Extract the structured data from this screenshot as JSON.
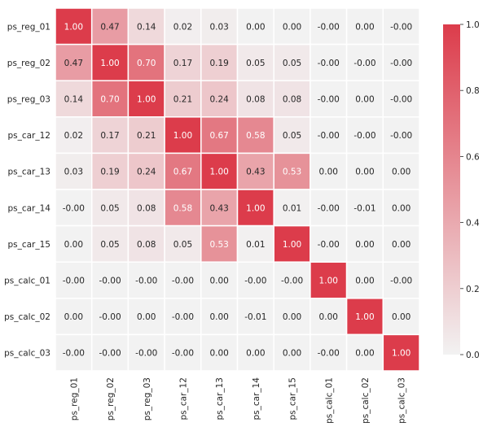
{
  "chart_data": {
    "type": "heatmap",
    "title": "",
    "xlabel": "",
    "ylabel": "",
    "variables": [
      "ps_reg_01",
      "ps_reg_02",
      "ps_reg_03",
      "ps_car_12",
      "ps_car_13",
      "ps_car_14",
      "ps_car_15",
      "ps_calc_01",
      "ps_calc_02",
      "ps_calc_03"
    ],
    "matrix": [
      [
        "1.00",
        "0.47",
        "0.14",
        "0.02",
        "0.03",
        "0.00",
        "0.00",
        "-0.00",
        "0.00",
        "-0.00"
      ],
      [
        "0.47",
        "1.00",
        "0.70",
        "0.17",
        "0.19",
        "0.05",
        "0.05",
        "-0.00",
        "-0.00",
        "-0.00"
      ],
      [
        "0.14",
        "0.70",
        "1.00",
        "0.21",
        "0.24",
        "0.08",
        "0.08",
        "-0.00",
        "0.00",
        "-0.00"
      ],
      [
        "0.02",
        "0.17",
        "0.21",
        "1.00",
        "0.67",
        "0.58",
        "0.05",
        "-0.00",
        "-0.00",
        "-0.00"
      ],
      [
        "0.03",
        "0.19",
        "0.24",
        "0.67",
        "1.00",
        "0.43",
        "0.53",
        "0.00",
        "0.00",
        "0.00"
      ],
      [
        "-0.00",
        "0.05",
        "0.08",
        "0.58",
        "0.43",
        "1.00",
        "0.01",
        "-0.00",
        "-0.01",
        "0.00"
      ],
      [
        "0.00",
        "0.05",
        "0.08",
        "0.05",
        "0.53",
        "0.01",
        "1.00",
        "-0.00",
        "0.00",
        "0.00"
      ],
      [
        "-0.00",
        "-0.00",
        "-0.00",
        "-0.00",
        "0.00",
        "-0.00",
        "-0.00",
        "1.00",
        "0.00",
        "-0.00"
      ],
      [
        "0.00",
        "-0.00",
        "0.00",
        "-0.00",
        "0.00",
        "-0.01",
        "0.00",
        "0.00",
        "1.00",
        "0.00"
      ],
      [
        "-0.00",
        "-0.00",
        "-0.00",
        "-0.00",
        "0.00",
        "0.00",
        "0.00",
        "-0.00",
        "0.00",
        "1.00"
      ]
    ],
    "colorbar": {
      "min": 0.0,
      "max": 1.0,
      "ticks": [
        "0.0",
        "0.2",
        "0.4",
        "0.6",
        "0.8",
        "1.0"
      ]
    },
    "colors": {
      "low": "#f2f2f2",
      "high": "#dc3c4b",
      "text_dark": "#262626",
      "text_light": "#ffffff",
      "grid": "#ffffff"
    }
  }
}
